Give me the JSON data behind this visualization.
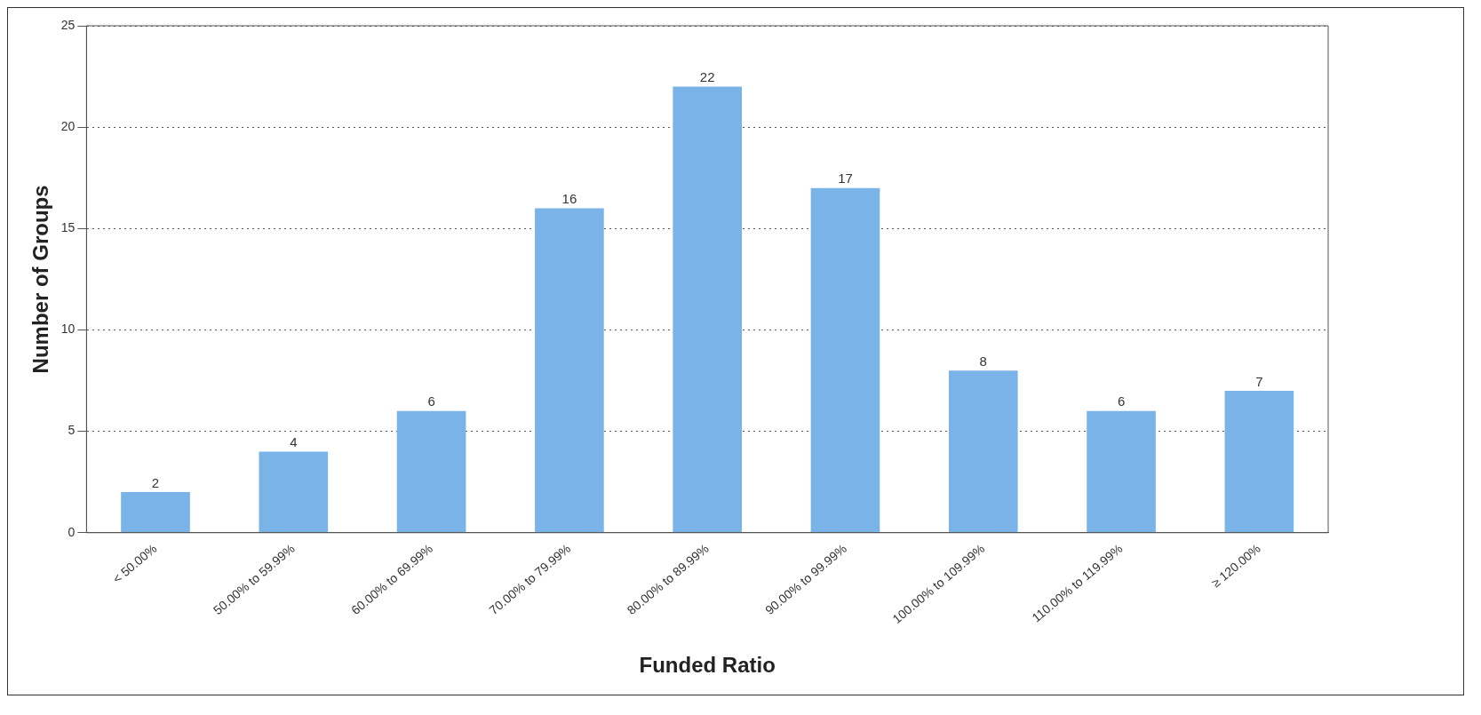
{
  "chart_data": {
    "type": "bar",
    "xlabel": "Funded Ratio",
    "ylabel": "Number of Groups",
    "categories": [
      "< 50.00%",
      "50.00% to 59.99%",
      "60.00% to 69.99%",
      "70.00% to 79.99%",
      "80.00% to 89.99%",
      "90.00% to 99.99%",
      "100.00% to 109.99%",
      "110.00% to 119.99%",
      "≥ 120.00%"
    ],
    "values": [
      2,
      4,
      6,
      16,
      22,
      17,
      8,
      6,
      7
    ],
    "color": "#7ab3e8",
    "ylim": [
      0,
      25
    ],
    "yticks": [
      0,
      5,
      10,
      15,
      20,
      25
    ],
    "grid": "y",
    "data_labels": true
  }
}
